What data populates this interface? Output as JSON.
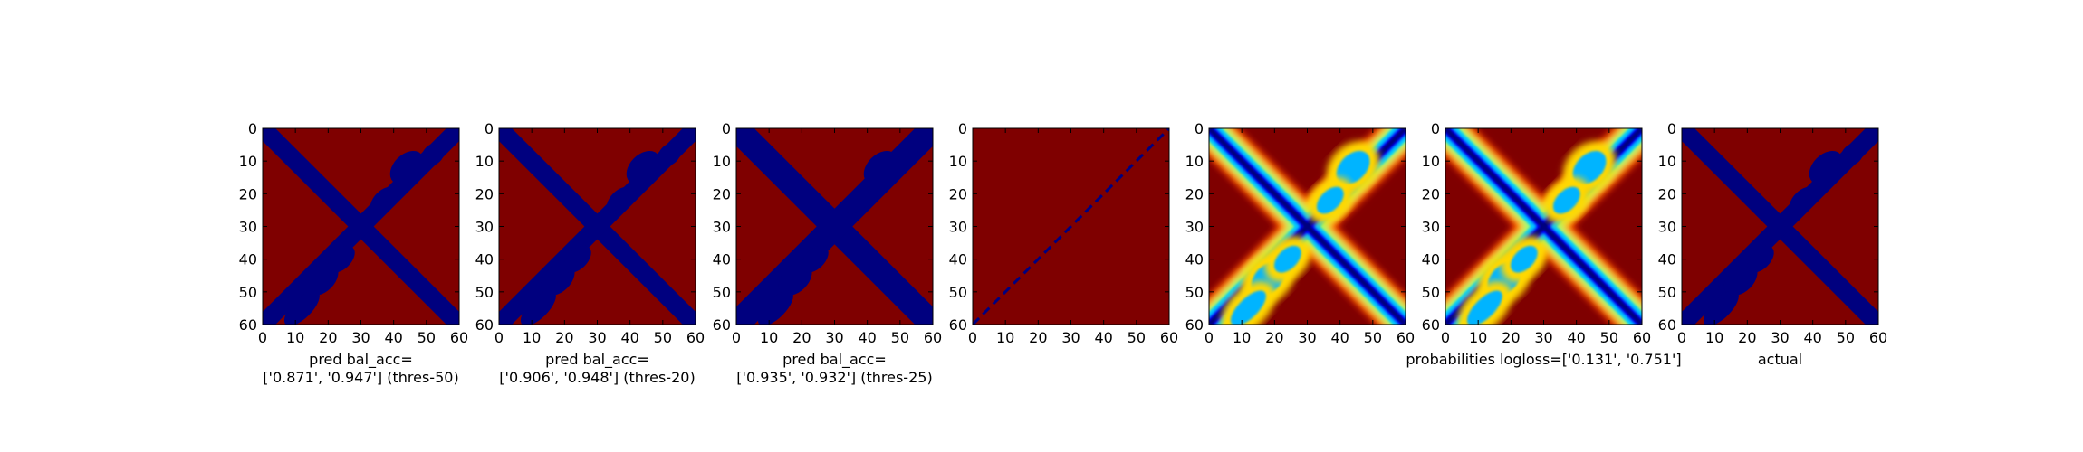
{
  "chart_data": [
    {
      "type": "heatmap",
      "colormap": "jet",
      "pattern": "binary",
      "caption": [
        "pred bal_acc=",
        "['0.871', '0.947'] (thres-50)"
      ],
      "xlim": [
        0,
        60
      ],
      "ylim": [
        60,
        0
      ],
      "xticks": [
        0,
        10,
        20,
        30,
        40,
        50,
        60
      ],
      "yticks": [
        0,
        10,
        20,
        30,
        40,
        50,
        60
      ]
    },
    {
      "type": "heatmap",
      "colormap": "jet",
      "pattern": "binary",
      "caption": [
        "pred bal_acc=",
        "['0.906', '0.948'] (thres-20)"
      ],
      "xlim": [
        0,
        60
      ],
      "ylim": [
        60,
        0
      ],
      "xticks": [
        0,
        10,
        20,
        30,
        40,
        50,
        60
      ],
      "yticks": [
        0,
        10,
        20,
        30,
        40,
        50,
        60
      ]
    },
    {
      "type": "heatmap",
      "colormap": "jet",
      "pattern": "binary",
      "caption": [
        "pred bal_acc=",
        "['0.935', '0.932'] (thres-25)"
      ],
      "xlim": [
        0,
        60
      ],
      "ylim": [
        60,
        0
      ],
      "xticks": [
        0,
        10,
        20,
        30,
        40,
        50,
        60
      ],
      "yticks": [
        0,
        10,
        20,
        30,
        40,
        50,
        60
      ]
    },
    {
      "type": "heatmap",
      "colormap": "jet",
      "pattern": "sparse-diagonal",
      "caption": [],
      "xlim": [
        0,
        60
      ],
      "ylim": [
        60,
        0
      ],
      "xticks": [
        0,
        10,
        20,
        30,
        40,
        50,
        60
      ],
      "yticks": [
        0,
        10,
        20,
        30,
        40,
        50,
        60
      ]
    },
    {
      "type": "heatmap",
      "colormap": "jet",
      "pattern": "gradient",
      "caption": [],
      "xlim": [
        0,
        60
      ],
      "ylim": [
        60,
        0
      ],
      "xticks": [
        0,
        10,
        20,
        30,
        40,
        50,
        60
      ],
      "yticks": [
        0,
        10,
        20,
        30,
        40,
        50,
        60
      ]
    },
    {
      "type": "heatmap",
      "colormap": "jet",
      "pattern": "gradient",
      "caption": [
        "probabilities logloss=['0.131', '0.751']"
      ],
      "xlim": [
        0,
        60
      ],
      "ylim": [
        60,
        0
      ],
      "xticks": [
        0,
        10,
        20,
        30,
        40,
        50,
        60
      ],
      "yticks": [
        0,
        10,
        20,
        30,
        40,
        50,
        60
      ]
    },
    {
      "type": "heatmap",
      "colormap": "jet",
      "pattern": "binary",
      "caption": [
        "actual"
      ],
      "xlim": [
        0,
        60
      ],
      "ylim": [
        60,
        0
      ],
      "xticks": [
        0,
        10,
        20,
        30,
        40,
        50,
        60
      ],
      "yticks": [
        0,
        10,
        20,
        30,
        40,
        50,
        60
      ]
    }
  ]
}
